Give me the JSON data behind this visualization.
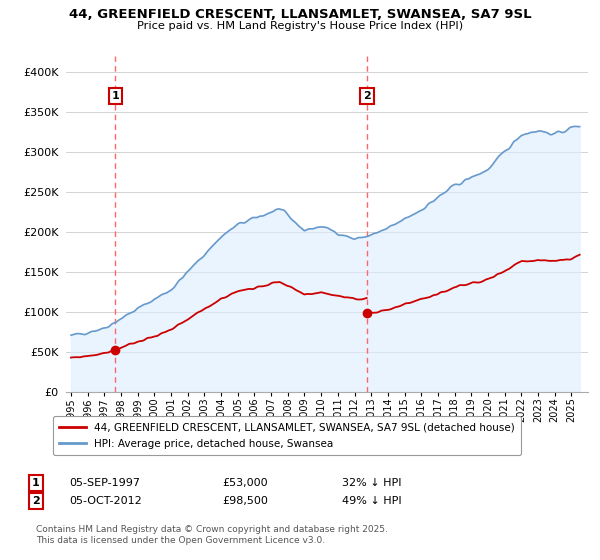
{
  "title": "44, GREENFIELD CRESCENT, LLANSAMLET, SWANSEA, SA7 9SL",
  "subtitle": "Price paid vs. HM Land Registry's House Price Index (HPI)",
  "legend_line1": "44, GREENFIELD CRESCENT, LLANSAMLET, SWANSEA, SA7 9SL (detached house)",
  "legend_line2": "HPI: Average price, detached house, Swansea",
  "annotation1_label": "1",
  "annotation1_date": "05-SEP-1997",
  "annotation1_price": 53000,
  "annotation2_label": "2",
  "annotation2_date": "05-OCT-2012",
  "annotation2_price": 98500,
  "ann1_col1": "05-SEP-1997",
  "ann1_col2": "£53,000",
  "ann1_col3": "32% ↓ HPI",
  "ann2_col1": "05-OCT-2012",
  "ann2_col2": "£98,500",
  "ann2_col3": "49% ↓ HPI",
  "copyright_text": "Contains HM Land Registry data © Crown copyright and database right 2025.\nThis data is licensed under the Open Government Licence v3.0.",
  "price_color": "#cc0000",
  "hpi_color": "#6699cc",
  "hpi_fill_color": "#ddeeff",
  "vline_color": "#ff6666",
  "annotation_box_color": "#cc0000",
  "background_color": "#ffffff",
  "grid_color": "#cccccc",
  "ylim": [
    0,
    420000
  ],
  "yticks": [
    0,
    50000,
    100000,
    150000,
    200000,
    250000,
    300000,
    350000,
    400000
  ],
  "t1": 1997.667,
  "t2": 2012.75,
  "sale1_price": 53000,
  "sale2_price": 98500,
  "xmin": 1995,
  "xmax": 2025.5
}
